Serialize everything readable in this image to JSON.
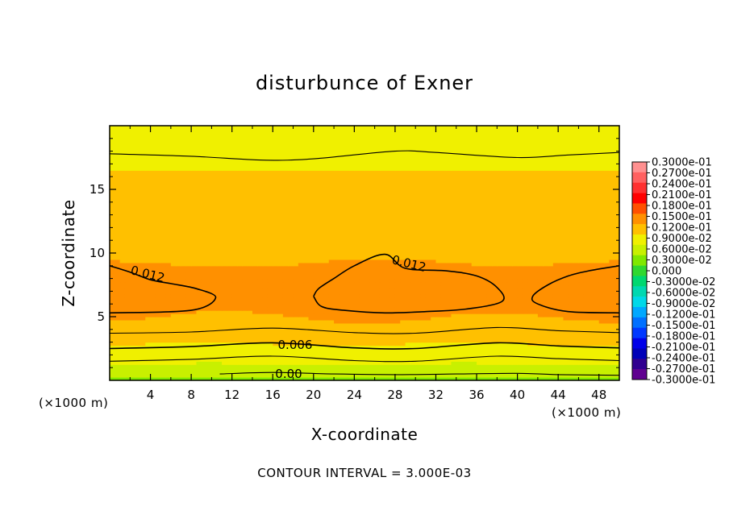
{
  "chart_data": {
    "type": "heatmap",
    "title": "disturbunce of Exner",
    "xlabel": "X-coordinate",
    "ylabel": "Z-coordinate",
    "xunit_left": "(×1000 m)",
    "xunit_right": "(×1000 m)",
    "footer": "CONTOUR INTERVAL = 3.000E-03",
    "xlim": [
      0,
      50
    ],
    "ylim": [
      0,
      20
    ],
    "xticks": [
      4,
      8,
      12,
      16,
      20,
      24,
      28,
      32,
      36,
      40,
      44,
      48
    ],
    "xtick_labels": [
      "4",
      "8",
      "12",
      "16",
      "20",
      "24",
      "28",
      "32",
      "36",
      "40",
      "44",
      "48"
    ],
    "yticks": [
      5,
      10,
      15
    ],
    "ytick_labels": [
      "5",
      "10",
      "15"
    ],
    "contour_interval": 0.003,
    "contour_labels": [
      "0.012",
      "0.012",
      "0.006",
      "0.00"
    ],
    "colorbar": {
      "levels": [
        0.03,
        0.027,
        0.024,
        0.021,
        0.018,
        0.015,
        0.012,
        0.009,
        0.006,
        0.003,
        0.0,
        -0.003,
        -0.006,
        -0.009,
        -0.012,
        -0.015,
        -0.018,
        -0.021,
        -0.024,
        -0.027,
        -0.03
      ],
      "labels": [
        "0.3000e-01",
        "0.2700e-01",
        "0.2400e-01",
        "0.2100e-01",
        "0.1800e-01",
        "0.1500e-01",
        "0.1200e-01",
        "0.9000e-02",
        "0.6000e-02",
        "0.3000e-02",
        "0.000",
        "-0.3000e-02",
        "-0.6000e-02",
        "-0.9000e-02",
        "-0.1200e-01",
        "-0.1500e-01",
        "-0.1800e-01",
        "-0.2100e-01",
        "-0.2400e-01",
        "-0.2700e-01",
        "-0.3000e-01"
      ],
      "colors": [
        "#ff9090",
        "#ff6060",
        "#ff3030",
        "#ff0000",
        "#ff5000",
        "#ff9000",
        "#ffc000",
        "#f0f000",
        "#c8f000",
        "#80e800",
        "#30d830",
        "#00d870",
        "#00d8b0",
        "#00d8e8",
        "#00a8ff",
        "#0070ff",
        "#0038ff",
        "#0000e8",
        "#0000b8",
        "#300090",
        "#600090"
      ]
    },
    "field_profile": {
      "z": [
        0,
        0.5,
        1,
        2,
        3,
        4,
        5.5,
        7,
        8.5,
        10,
        12,
        14,
        16,
        17.5,
        19,
        20
      ],
      "value": [
        0.0015,
        0.004,
        0.0055,
        0.0075,
        0.0092,
        0.0108,
        0.0122,
        0.0128,
        0.0122,
        0.0115,
        0.0108,
        0.0102,
        0.0092,
        0.0085,
        0.0078,
        0.0075
      ]
    },
    "anomaly_centers": [
      {
        "x": 27,
        "z": 6.8,
        "amplitude": 0.0022,
        "sigma_x": 6.2,
        "sigma_z": 2.0
      },
      {
        "x": 0,
        "z": 6.8,
        "amplitude": 0.0021,
        "sigma_x": 5.5,
        "sigma_z": 1.7
      },
      {
        "x": 50,
        "z": 6.8,
        "amplitude": 0.0021,
        "sigma_x": 5.5,
        "sigma_z": 1.7
      }
    ],
    "contour_lines": [
      {
        "level": 0.0,
        "points": [
          [
            10.8,
            0.5
          ],
          [
            16,
            0.62
          ],
          [
            22,
            0.5
          ],
          [
            28,
            0.45
          ],
          [
            34,
            0.5
          ],
          [
            40,
            0.55
          ],
          [
            44,
            0.45
          ],
          [
            50,
            0.4
          ]
        ]
      },
      {
        "level": 0.003,
        "points": [
          [
            0,
            1.5
          ],
          [
            8,
            1.65
          ],
          [
            16,
            1.9
          ],
          [
            24,
            1.55
          ],
          [
            30,
            1.5
          ],
          [
            38,
            1.9
          ],
          [
            44,
            1.7
          ],
          [
            50,
            1.55
          ]
        ]
      },
      {
        "level": 0.006,
        "points": [
          [
            0,
            2.5
          ],
          [
            8,
            2.65
          ],
          [
            16,
            2.95
          ],
          [
            24,
            2.55
          ],
          [
            30,
            2.5
          ],
          [
            38,
            2.95
          ],
          [
            44,
            2.7
          ],
          [
            50,
            2.55
          ]
        ]
      },
      {
        "level": 0.009,
        "points": [
          [
            0,
            3.7
          ],
          [
            8,
            3.8
          ],
          [
            16,
            4.1
          ],
          [
            24,
            3.75
          ],
          [
            30,
            3.7
          ],
          [
            38,
            4.15
          ],
          [
            44,
            3.9
          ],
          [
            50,
            3.75
          ]
        ]
      },
      {
        "level": 0.012,
        "points": [
          [
            0,
            5.3
          ],
          [
            8,
            5.5
          ],
          [
            10.4,
            6.5
          ],
          [
            8.5,
            7.2
          ],
          [
            6,
            7.6
          ],
          [
            4,
            7.9
          ],
          [
            2,
            8.5
          ],
          [
            0,
            9.0
          ]
        ]
      },
      {
        "level": 0.012,
        "points": [
          [
            20,
            6.6
          ],
          [
            20.8,
            5.8
          ],
          [
            23,
            5.5
          ],
          [
            27,
            5.3
          ],
          [
            31,
            5.4
          ],
          [
            35,
            5.6
          ],
          [
            38.5,
            6.2
          ],
          [
            38,
            7.3
          ],
          [
            36,
            8.2
          ],
          [
            33,
            8.6
          ],
          [
            29,
            8.8
          ],
          [
            27,
            9.9
          ],
          [
            24,
            9.0
          ],
          [
            22,
            8.0
          ],
          [
            20.5,
            7.2
          ],
          [
            20,
            6.6
          ]
        ]
      },
      {
        "level": 0.012,
        "points": [
          [
            50,
            5.3
          ],
          [
            45,
            5.4
          ],
          [
            42,
            6.0
          ],
          [
            41.5,
            6.6
          ],
          [
            43,
            7.5
          ],
          [
            45,
            8.2
          ],
          [
            47,
            8.6
          ],
          [
            50,
            9.0
          ]
        ]
      },
      {
        "level": 0.009,
        "points": [
          [
            0,
            17.8
          ],
          [
            8,
            17.6
          ],
          [
            15,
            17.3
          ],
          [
            20,
            17.4
          ],
          [
            28,
            18.0
          ],
          [
            32,
            17.9
          ],
          [
            40,
            17.5
          ],
          [
            45,
            17.7
          ],
          [
            50,
            17.9
          ]
        ]
      }
    ],
    "grid": false,
    "legend": "right-colorbar"
  }
}
